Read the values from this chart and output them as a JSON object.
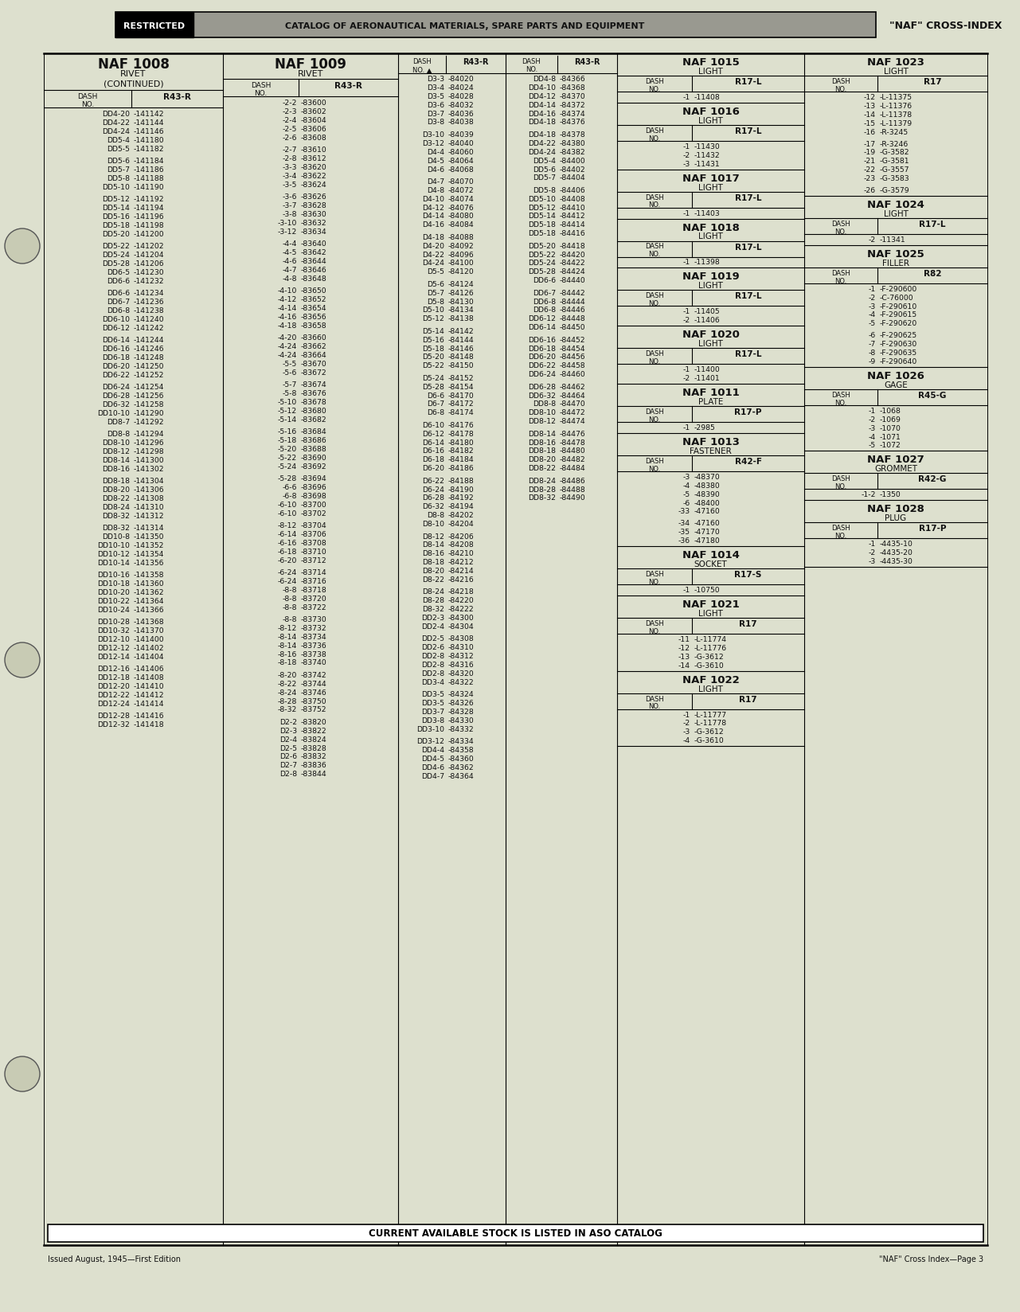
{
  "bg_color": "#dde0ce",
  "page_title_banner": "CATALOG OF AERONAUTICAL MATERIALS, SPARE PARTS AND EQUIPMENT",
  "page_title_right": "\"NAF\" CROSS-INDEX",
  "restricted_text": "RESTRICTED",
  "footer_left": "Issued August, 1945—First Edition",
  "footer_right": "\"NAF\" Cross Index—Page 3",
  "bottom_banner": "CURRENT AVAILABLE STOCK IS LISTED IN ASO CATALOG",
  "col1_title": "NAF 1008",
  "col1_sub": "RIVET",
  "col1_sub2": "(CONTINUED)",
  "col1_hdr1": "DASH\nNO.",
  "col1_hdr2": "R43-R",
  "col1_data": [
    [
      "DD4-20",
      "-141142"
    ],
    [
      "DD4-22",
      "-141144"
    ],
    [
      "DD4-24",
      "-141146"
    ],
    [
      "DD5-4",
      "-141180"
    ],
    [
      "DD5-5",
      "-141182"
    ],
    [
      "",
      ""
    ],
    [
      "DD5-6",
      "-141184"
    ],
    [
      "DD5-7",
      "-141186"
    ],
    [
      "DD5-8",
      "-141188"
    ],
    [
      "DD5-10",
      "-141190"
    ],
    [
      "",
      ""
    ],
    [
      "DD5-12",
      "-141192"
    ],
    [
      "DD5-14",
      "-141194"
    ],
    [
      "DD5-16",
      "-141196"
    ],
    [
      "DD5-18",
      "-141198"
    ],
    [
      "DD5-20",
      "-141200"
    ],
    [
      "",
      ""
    ],
    [
      "DD5-22",
      "-141202"
    ],
    [
      "DD5-24",
      "-141204"
    ],
    [
      "DD5-28",
      "-141206"
    ],
    [
      "DD6-5",
      "-141230"
    ],
    [
      "DD6-6",
      "-141232"
    ],
    [
      "",
      ""
    ],
    [
      "DD6-6",
      "-141234"
    ],
    [
      "DD6-7",
      "-141236"
    ],
    [
      "DD6-8",
      "-141238"
    ],
    [
      "DD6-10",
      "-141240"
    ],
    [
      "DD6-12",
      "-141242"
    ],
    [
      "",
      ""
    ],
    [
      "DD6-14",
      "-141244"
    ],
    [
      "DD6-16",
      "-141246"
    ],
    [
      "DD6-18",
      "-141248"
    ],
    [
      "DD6-20",
      "-141250"
    ],
    [
      "DD6-22",
      "-141252"
    ],
    [
      "",
      ""
    ],
    [
      "DD6-24",
      "-141254"
    ],
    [
      "DD6-28",
      "-141256"
    ],
    [
      "DD6-32",
      "-141258"
    ],
    [
      "DD10-10",
      "-141290"
    ],
    [
      "DD8-7",
      "-141292"
    ],
    [
      "",
      ""
    ],
    [
      "DD8-8",
      "-141294"
    ],
    [
      "DD8-10",
      "-141296"
    ],
    [
      "DD8-12",
      "-141298"
    ],
    [
      "DD8-14",
      "-141300"
    ],
    [
      "DD8-16",
      "-141302"
    ],
    [
      "",
      ""
    ],
    [
      "DD8-18",
      "-141304"
    ],
    [
      "DD8-20",
      "-141306"
    ],
    [
      "DD8-22",
      "-141308"
    ],
    [
      "DD8-24",
      "-141310"
    ],
    [
      "DD8-32",
      "-141312"
    ],
    [
      "",
      ""
    ],
    [
      "DD8-32",
      "-141314"
    ],
    [
      "DD10-8",
      "-141350"
    ],
    [
      "DD10-10",
      "-141352"
    ],
    [
      "DD10-12",
      "-141354"
    ],
    [
      "DD10-14",
      "-141356"
    ],
    [
      "",
      ""
    ],
    [
      "DD10-16",
      "-141358"
    ],
    [
      "DD10-18",
      "-141360"
    ],
    [
      "DD10-20",
      "-141362"
    ],
    [
      "DD10-22",
      "-141364"
    ],
    [
      "DD10-24",
      "-141366"
    ],
    [
      "",
      ""
    ],
    [
      "DD10-28",
      "-141368"
    ],
    [
      "DD10-32",
      "-141370"
    ],
    [
      "DD12-10",
      "-141400"
    ],
    [
      "DD12-12",
      "-141402"
    ],
    [
      "DD12-14",
      "-141404"
    ],
    [
      "",
      ""
    ],
    [
      "DD12-16",
      "-141406"
    ],
    [
      "DD12-18",
      "-141408"
    ],
    [
      "DD12-20",
      "-141410"
    ],
    [
      "DD12-22",
      "-141412"
    ],
    [
      "DD12-24",
      "-141414"
    ],
    [
      "",
      ""
    ],
    [
      "DD12-28",
      "-141416"
    ],
    [
      "DD12-32",
      "-141418"
    ]
  ],
  "col2_title": "NAF 1009",
  "col2_sub": "RIVET",
  "col2_hdr1": "DASH\nNO.",
  "col2_hdr2": "R43-R",
  "col2_data": [
    [
      "-2-2",
      "-83600"
    ],
    [
      "-2-3",
      "-83602"
    ],
    [
      "-2-4",
      "-83604"
    ],
    [
      "-2-5",
      "-83606"
    ],
    [
      "-2-6",
      "-83608"
    ],
    [
      "",
      ""
    ],
    [
      "-2-7",
      "-83610"
    ],
    [
      "-2-8",
      "-83612"
    ],
    [
      "-3-3",
      "-83620"
    ],
    [
      "-3-4",
      "-83622"
    ],
    [
      "-3-5",
      "-83624"
    ],
    [
      "",
      ""
    ],
    [
      "-3-6",
      "-83626"
    ],
    [
      "-3-7",
      "-83628"
    ],
    [
      "-3-8",
      "-83630"
    ],
    [
      "-3-10",
      "-83632"
    ],
    [
      "-3-12",
      "-83634"
    ],
    [
      "",
      ""
    ],
    [
      "-4-4",
      "-83640"
    ],
    [
      "-4-5",
      "-83642"
    ],
    [
      "-4-6",
      "-83644"
    ],
    [
      "-4-7",
      "-83646"
    ],
    [
      "-4-8",
      "-83648"
    ],
    [
      "",
      ""
    ],
    [
      "-4-10",
      "-83650"
    ],
    [
      "-4-12",
      "-83652"
    ],
    [
      "-4-14",
      "-83654"
    ],
    [
      "-4-16",
      "-83656"
    ],
    [
      "-4-18",
      "-83658"
    ],
    [
      "",
      ""
    ],
    [
      "-4-20",
      "-83660"
    ],
    [
      "-4-24",
      "-83662"
    ],
    [
      "-4-24",
      "-83664"
    ],
    [
      "-5-5",
      "-83670"
    ],
    [
      "-5-6",
      "-83672"
    ],
    [
      "",
      ""
    ],
    [
      "-5-7",
      "-83674"
    ],
    [
      "-5-8",
      "-83676"
    ],
    [
      "-5-10",
      "-83678"
    ],
    [
      "-5-12",
      "-83680"
    ],
    [
      "-5-14",
      "-83682"
    ],
    [
      "",
      ""
    ],
    [
      "-5-16",
      "-83684"
    ],
    [
      "-5-18",
      "-83686"
    ],
    [
      "-5-20",
      "-83688"
    ],
    [
      "-5-22",
      "-83690"
    ],
    [
      "-5-24",
      "-83692"
    ],
    [
      "",
      ""
    ],
    [
      "-5-28",
      "-83694"
    ],
    [
      "-6-6",
      "-83696"
    ],
    [
      "-6-8",
      "-83698"
    ],
    [
      "-6-10",
      "-83700"
    ],
    [
      "-6-10",
      "-83702"
    ],
    [
      "",
      ""
    ],
    [
      "-8-12",
      "-83704"
    ],
    [
      "-6-14",
      "-83706"
    ],
    [
      "-6-16",
      "-83708"
    ],
    [
      "-6-18",
      "-83710"
    ],
    [
      "-6-20",
      "-83712"
    ],
    [
      "",
      ""
    ],
    [
      "-6-24",
      "-83714"
    ],
    [
      "-6-24",
      "-83716"
    ],
    [
      "-8-8",
      "-83718"
    ],
    [
      "-8-8",
      "-83720"
    ],
    [
      "-8-8",
      "-83722"
    ],
    [
      "",
      ""
    ],
    [
      "-8-8",
      "-83730"
    ],
    [
      "-8-12",
      "-83732"
    ],
    [
      "-8-14",
      "-83734"
    ],
    [
      "-8-14",
      "-83736"
    ],
    [
      "-8-16",
      "-83738"
    ],
    [
      "-8-18",
      "-83740"
    ],
    [
      "",
      ""
    ],
    [
      "-8-20",
      "-83742"
    ],
    [
      "-8-22",
      "-83744"
    ],
    [
      "-8-24",
      "-83746"
    ],
    [
      "-8-28",
      "-83750"
    ],
    [
      "-8-32",
      "-83752"
    ],
    [
      "",
      ""
    ],
    [
      "D2-2",
      "-83820"
    ],
    [
      "D2-3",
      "-83822"
    ],
    [
      "D2-4",
      "-83824"
    ],
    [
      "D2-5",
      "-83828"
    ],
    [
      "D2-6",
      "-83832"
    ],
    [
      "D2-7",
      "-83836"
    ],
    [
      "D2-8",
      "-83844"
    ]
  ],
  "col3_data": [
    [
      "D3-3",
      "-84020"
    ],
    [
      "D3-4",
      "-84024"
    ],
    [
      "D3-5",
      "-84028"
    ],
    [
      "D3-6",
      "-84032"
    ],
    [
      "D3-7",
      "-84036"
    ],
    [
      "D3-8",
      "-84038"
    ],
    [
      "",
      ""
    ],
    [
      "D3-10",
      "-84039"
    ],
    [
      "D3-12",
      "-84040"
    ],
    [
      "D4-4",
      "-84060"
    ],
    [
      "D4-5",
      "-84064"
    ],
    [
      "D4-6",
      "-84068"
    ],
    [
      "",
      ""
    ],
    [
      "D4-7",
      "-84070"
    ],
    [
      "D4-8",
      "-84072"
    ],
    [
      "D4-10",
      "-84074"
    ],
    [
      "D4-12",
      "-84076"
    ],
    [
      "D4-14",
      "-84080"
    ],
    [
      "D4-16",
      "-84084"
    ],
    [
      "",
      ""
    ],
    [
      "D4-18",
      "-84088"
    ],
    [
      "D4-20",
      "-84092"
    ],
    [
      "D4-22",
      "-84096"
    ],
    [
      "D4-24",
      "-84100"
    ],
    [
      "D5-5",
      "-84120"
    ],
    [
      "",
      ""
    ],
    [
      "D5-6",
      "-84124"
    ],
    [
      "D5-7",
      "-84126"
    ],
    [
      "D5-8",
      "-84130"
    ],
    [
      "D5-10",
      "-84134"
    ],
    [
      "D5-12",
      "-84138"
    ],
    [
      "",
      ""
    ],
    [
      "D5-14",
      "-84142"
    ],
    [
      "D5-16",
      "-84144"
    ],
    [
      "D5-18",
      "-84146"
    ],
    [
      "D5-20",
      "-84148"
    ],
    [
      "D5-22",
      "-84150"
    ],
    [
      "",
      ""
    ],
    [
      "D5-24",
      "-84152"
    ],
    [
      "D5-28",
      "-84154"
    ],
    [
      "D6-6",
      "-84170"
    ],
    [
      "D6-7",
      "-84172"
    ],
    [
      "D6-8",
      "-84174"
    ],
    [
      "",
      ""
    ],
    [
      "D6-10",
      "-84176"
    ],
    [
      "D6-12",
      "-84178"
    ],
    [
      "D6-14",
      "-84180"
    ],
    [
      "D6-16",
      "-84182"
    ],
    [
      "D6-18",
      "-84184"
    ],
    [
      "D6-20",
      "-84186"
    ],
    [
      "",
      ""
    ],
    [
      "D6-22",
      "-84188"
    ],
    [
      "D6-24",
      "-84190"
    ],
    [
      "D6-28",
      "-84192"
    ],
    [
      "D6-32",
      "-84194"
    ],
    [
      "D8-8",
      "-84202"
    ],
    [
      "D8-10",
      "-84204"
    ],
    [
      "",
      ""
    ],
    [
      "D8-12",
      "-84206"
    ],
    [
      "D8-14",
      "-84208"
    ],
    [
      "D8-16",
      "-84210"
    ],
    [
      "D8-18",
      "-84212"
    ],
    [
      "D8-20",
      "-84214"
    ],
    [
      "D8-22",
      "-84216"
    ],
    [
      "",
      ""
    ],
    [
      "D8-24",
      "-84218"
    ],
    [
      "D8-28",
      "-84220"
    ],
    [
      "D8-32",
      "-84222"
    ],
    [
      "DD2-3",
      "-84300"
    ],
    [
      "DD2-4",
      "-84304"
    ],
    [
      "",
      ""
    ],
    [
      "DD2-5",
      "-84308"
    ],
    [
      "DD2-6",
      "-84310"
    ],
    [
      "DD2-8",
      "-84312"
    ],
    [
      "DD2-8",
      "-84316"
    ],
    [
      "DD2-8",
      "-84320"
    ],
    [
      "DD3-4",
      "-84322"
    ],
    [
      "",
      ""
    ],
    [
      "DD3-5",
      "-84324"
    ],
    [
      "DD3-5",
      "-84326"
    ],
    [
      "DD3-7",
      "-84328"
    ],
    [
      "DD3-8",
      "-84330"
    ],
    [
      "DD3-10",
      "-84332"
    ],
    [
      "",
      ""
    ],
    [
      "DD3-12",
      "-84334"
    ],
    [
      "DD4-4",
      "-84358"
    ],
    [
      "DD4-5",
      "-84360"
    ],
    [
      "DD4-6",
      "-84362"
    ],
    [
      "DD4-7",
      "-84364"
    ]
  ],
  "col4_data": [
    [
      "DD4-8",
      "-84366"
    ],
    [
      "DD4-10",
      "-84368"
    ],
    [
      "DD4-12",
      "-84370"
    ],
    [
      "DD4-14",
      "-84372"
    ],
    [
      "DD4-16",
      "-84374"
    ],
    [
      "DD4-18",
      "-84376"
    ],
    [
      "",
      ""
    ],
    [
      "DD4-18",
      "-84378"
    ],
    [
      "DD4-22",
      "-84380"
    ],
    [
      "DD4-24",
      "-84382"
    ],
    [
      "DD5-4",
      "-84400"
    ],
    [
      "DD5-6",
      "-84402"
    ],
    [
      "DD5-7",
      "-84404"
    ],
    [
      "",
      ""
    ],
    [
      "DD5-8",
      "-84406"
    ],
    [
      "DD5-10",
      "-84408"
    ],
    [
      "DD5-12",
      "-84410"
    ],
    [
      "DD5-14",
      "-84412"
    ],
    [
      "DD5-18",
      "-84414"
    ],
    [
      "DD5-18",
      "-84416"
    ],
    [
      "",
      ""
    ],
    [
      "DD5-20",
      "-84418"
    ],
    [
      "DD5-22",
      "-84420"
    ],
    [
      "DD5-24",
      "-84422"
    ],
    [
      "DD5-28",
      "-84424"
    ],
    [
      "DD6-6",
      "-84440"
    ],
    [
      "",
      ""
    ],
    [
      "DD6-7",
      "-84442"
    ],
    [
      "DD6-8",
      "-84444"
    ],
    [
      "DD6-8",
      "-84446"
    ],
    [
      "DD6-12",
      "-84448"
    ],
    [
      "DD6-14",
      "-84450"
    ],
    [
      "",
      ""
    ],
    [
      "DD6-16",
      "-84452"
    ],
    [
      "DD6-18",
      "-84454"
    ],
    [
      "DD6-20",
      "-84456"
    ],
    [
      "DD6-22",
      "-84458"
    ],
    [
      "DD6-24",
      "-84460"
    ],
    [
      "",
      ""
    ],
    [
      "DD6-28",
      "-84462"
    ],
    [
      "DD6-32",
      "-84464"
    ],
    [
      "DD8-8",
      "-84470"
    ],
    [
      "DD8-10",
      "-84472"
    ],
    [
      "DD8-12",
      "-84474"
    ],
    [
      "",
      ""
    ],
    [
      "DD8-14",
      "-84476"
    ],
    [
      "DD8-16",
      "-84478"
    ],
    [
      "DD8-18",
      "-84480"
    ],
    [
      "DD8-20",
      "-84482"
    ],
    [
      "DD8-22",
      "-84484"
    ],
    [
      "",
      ""
    ],
    [
      "DD8-24",
      "-84486"
    ],
    [
      "DD8-28",
      "-84488"
    ],
    [
      "DD8-32",
      "-84490"
    ]
  ],
  "right_blocks_left": [
    {
      "title": "NAF 1015",
      "sub": "LIGHT",
      "hdr1": "DASH\nNO.",
      "hdr2": "R17-L",
      "data": [
        [
          "-1",
          "-11408"
        ]
      ]
    },
    {
      "title": "NAF 1016",
      "sub": "LIGHT",
      "hdr1": "DASH\nNO.",
      "hdr2": "R17-L",
      "data": [
        [
          "-1",
          "-11430"
        ],
        [
          "-2",
          "-11432"
        ],
        [
          "-3",
          "-11431"
        ]
      ]
    },
    {
      "title": "NAF 1017",
      "sub": "LIGHT",
      "hdr1": "DASH\nNO.",
      "hdr2": "R17-L",
      "data": [
        [
          "-1",
          "-11403"
        ]
      ]
    },
    {
      "title": "NAF 1018",
      "sub": "LIGHT",
      "hdr1": "DASH\nNO.",
      "hdr2": "R17-L",
      "data": [
        [
          "-1",
          "-11398"
        ]
      ]
    },
    {
      "title": "NAF 1019",
      "sub": "LIGHT",
      "hdr1": "DASH\nNO.",
      "hdr2": "R17-L",
      "data": [
        [
          "-1",
          "-11405"
        ],
        [
          "-2",
          "-11406"
        ]
      ]
    },
    {
      "title": "NAF 1020",
      "sub": "LIGHT",
      "hdr1": "DASH\nNO.",
      "hdr2": "R17-L",
      "data": [
        [
          "-1",
          "-11400"
        ],
        [
          "-2",
          "-11401"
        ]
      ]
    },
    {
      "title": "NAF 1011",
      "sub": "PLATE",
      "hdr1": "DASH\nNO.",
      "hdr2": "R17-P",
      "data": [
        [
          "-1",
          "-2985"
        ]
      ]
    },
    {
      "title": "NAF 1013",
      "sub": "FASTENER",
      "hdr1": "DASH\nNO.",
      "hdr2": "R42-F",
      "data": [
        [
          "-3",
          "-48370"
        ],
        [
          "-4",
          "-48380"
        ],
        [
          "-5",
          "-48390"
        ],
        [
          "-6",
          "-48400"
        ],
        [
          "-33",
          "-47160"
        ],
        [
          "",
          ""
        ],
        [
          "-34",
          "-47160"
        ],
        [
          "-35",
          "-47170"
        ],
        [
          "-36",
          "-47180"
        ]
      ]
    },
    {
      "title": "NAF 1014",
      "sub": "SOCKET",
      "hdr1": "DASH\nNO.",
      "hdr2": "R17-S",
      "data": [
        [
          "-1",
          "-10750"
        ]
      ]
    },
    {
      "title": "NAF 1021",
      "sub": "LIGHT",
      "hdr1": "DASH\nNO.",
      "hdr2": "R17",
      "data": [
        [
          "-11",
          "-L-11774"
        ],
        [
          "-12",
          "-L-11776"
        ],
        [
          "-13",
          "-G-3612"
        ],
        [
          "-14",
          "-G-3610"
        ]
      ]
    },
    {
      "title": "NAF 1022",
      "sub": "LIGHT",
      "hdr1": "DASH\nNO.",
      "hdr2": "R17",
      "data": [
        [
          "-1",
          "-L-11777"
        ],
        [
          "-2",
          "-L-11778"
        ],
        [
          "-3",
          "-G-3612"
        ],
        [
          "-4",
          "-G-3610"
        ]
      ]
    }
  ],
  "right_blocks_right": [
    {
      "title": "NAF 1023",
      "sub": "LIGHT",
      "hdr1": "DASH\nNO.",
      "hdr2": "R17",
      "data": [
        [
          "-12",
          "-L-11375"
        ],
        [
          "-13",
          "-L-11376"
        ],
        [
          "-14",
          "-L-11378"
        ],
        [
          "-15",
          "-L-11379"
        ],
        [
          "-16",
          "-R-3245"
        ],
        [
          "",
          ""
        ],
        [
          "-17",
          "-R-3246"
        ],
        [
          "-19",
          "-G-3582"
        ],
        [
          "-21",
          "-G-3581"
        ],
        [
          "-22",
          "-G-3557"
        ],
        [
          "-23",
          "-G-3583"
        ],
        [
          "",
          ""
        ],
        [
          "-26",
          "-G-3579"
        ]
      ]
    },
    {
      "title": "NAF 1024",
      "sub": "LIGHT",
      "hdr1": "DASH\nNO.",
      "hdr2": "R17-L",
      "data": [
        [
          "-2",
          "-11341"
        ]
      ]
    },
    {
      "title": "NAF 1025",
      "sub": "FILLER",
      "hdr1": "DASH\nNO.",
      "hdr2": "R82",
      "data": [
        [
          "-1",
          "-F-290600"
        ],
        [
          "-2",
          "-C-76000"
        ],
        [
          "-3",
          "-F-290610"
        ],
        [
          "-4",
          "-F-290615"
        ],
        [
          "-5",
          "-F-290620"
        ],
        [
          "",
          ""
        ],
        [
          "-6",
          "-F-290625"
        ],
        [
          "-7",
          "-F-290630"
        ],
        [
          "-8",
          "-F-290635"
        ],
        [
          "-9",
          "-F-290640"
        ]
      ]
    },
    {
      "title": "NAF 1026",
      "sub": "GAGE",
      "hdr1": "DASH\nNO.",
      "hdr2": "R45-G",
      "data": [
        [
          "-1",
          "-1068"
        ],
        [
          "-2",
          "-1069"
        ],
        [
          "-3",
          "-1070"
        ],
        [
          "-4",
          "-1071"
        ],
        [
          "-5",
          "-1072"
        ]
      ]
    },
    {
      "title": "NAF 1027",
      "sub": "GROMMET",
      "hdr1": "DASH\nNO.",
      "hdr2": "R42-G",
      "data": [
        [
          "-1-2",
          "-1350"
        ]
      ]
    },
    {
      "title": "NAF 1028",
      "sub": "PLUG",
      "hdr1": "DASH\nNO.",
      "hdr2": "R17-P",
      "data": [
        [
          "-1",
          "-4435-10"
        ],
        [
          "-2",
          "-4435-20"
        ],
        [
          "-3",
          "-4435-30"
        ]
      ]
    }
  ]
}
